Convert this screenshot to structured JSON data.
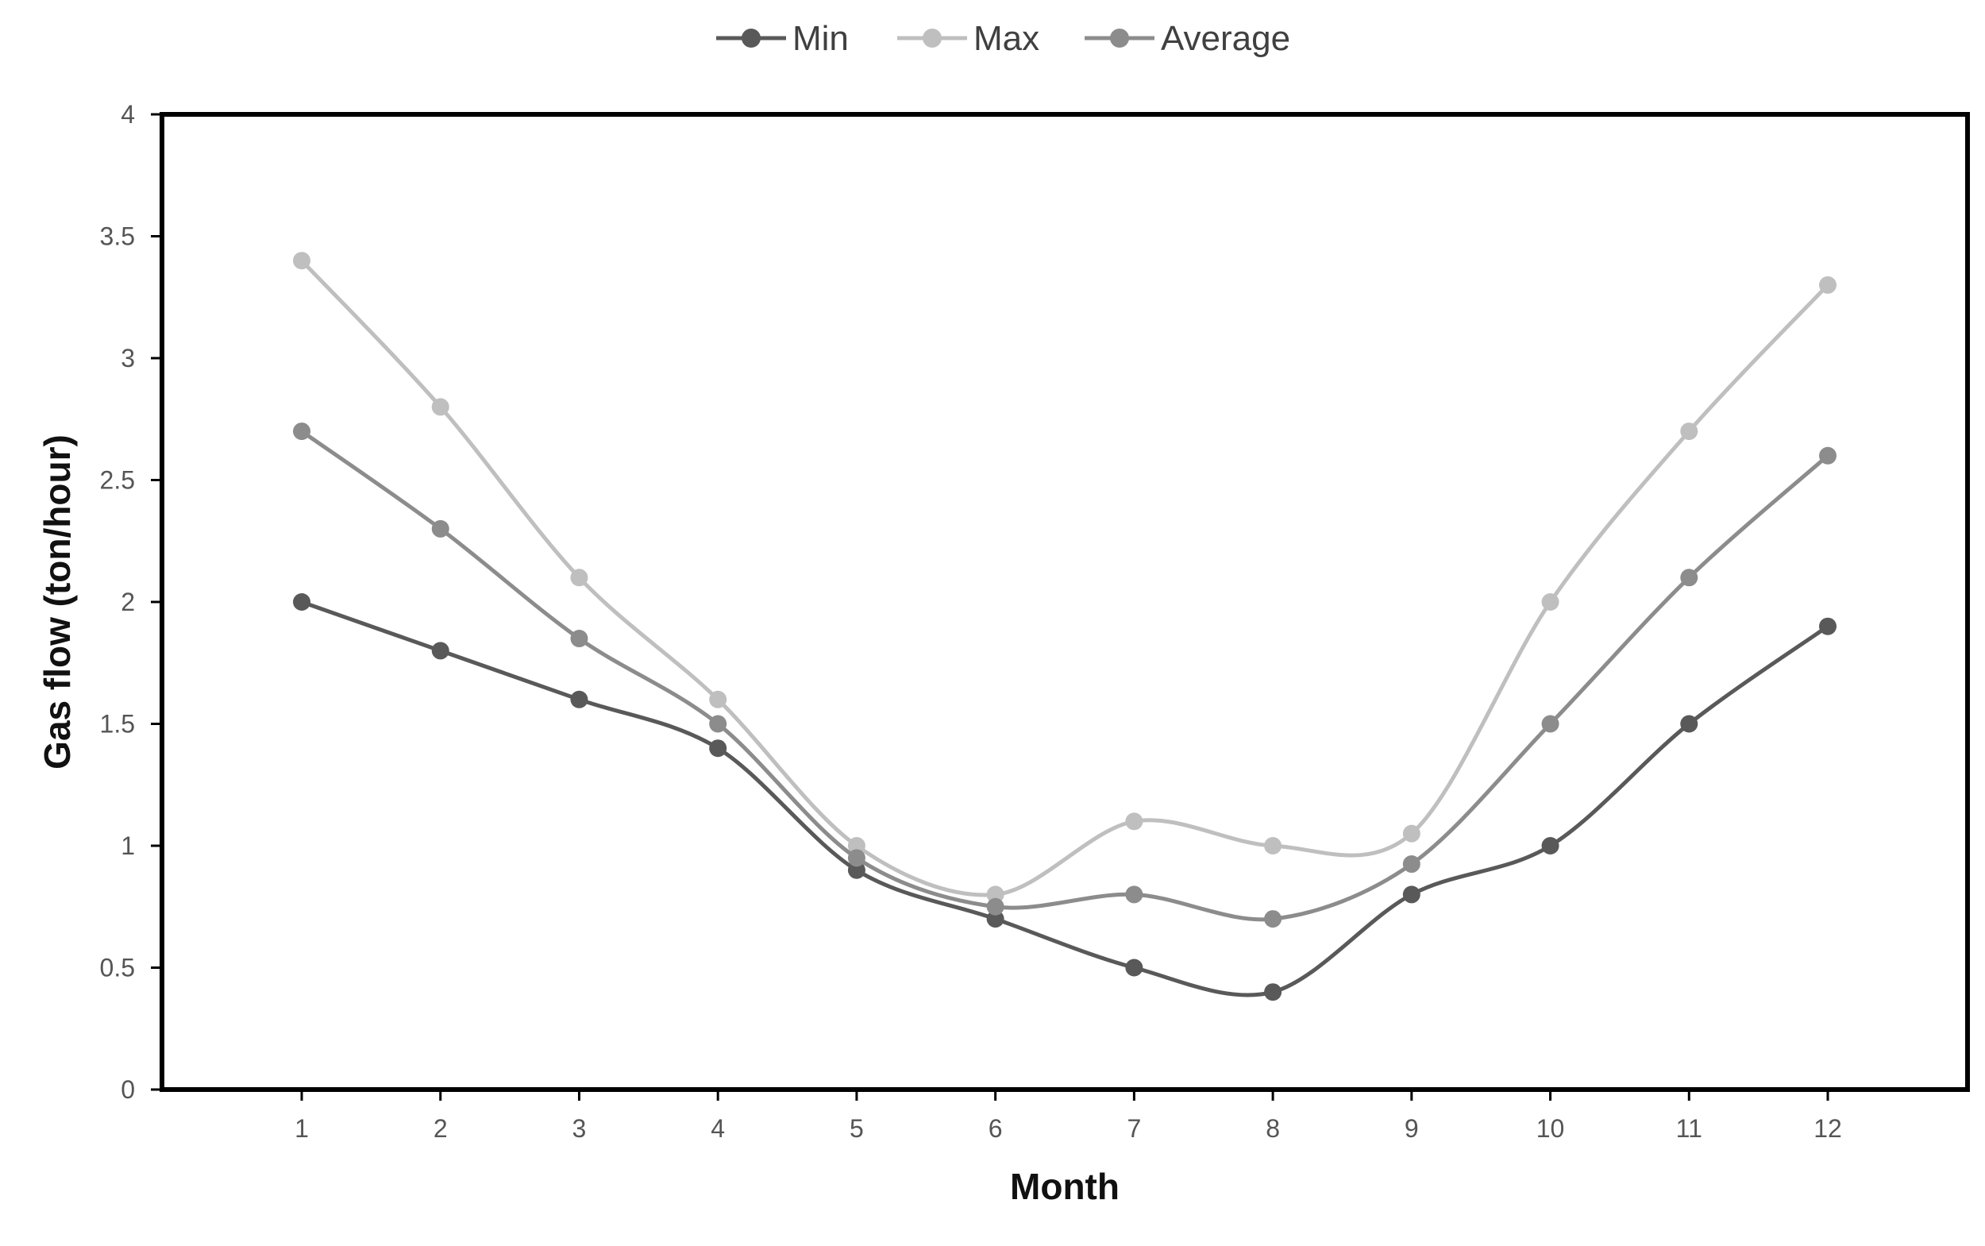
{
  "chart_data": {
    "type": "line",
    "title": "",
    "xlabel": "Month",
    "ylabel": "Gas flow (ton/hour)",
    "categories": [
      "1",
      "2",
      "3",
      "4",
      "5",
      "6",
      "7",
      "8",
      "9",
      "10",
      "11",
      "12"
    ],
    "y_ticks": [
      "0",
      "0.5",
      "1",
      "1.5",
      "2",
      "2.5",
      "3",
      "3.5",
      "4"
    ],
    "ylim": [
      0,
      4
    ],
    "grid": false,
    "legend_position": "top-center",
    "series": [
      {
        "name": "Min",
        "color": "#595959",
        "values": [
          2.0,
          1.8,
          1.6,
          1.4,
          0.9,
          0.7,
          0.5,
          0.4,
          0.8,
          1.0,
          1.5,
          1.9
        ]
      },
      {
        "name": "Max",
        "color": "#bfbfbf",
        "values": [
          3.4,
          2.8,
          2.1,
          1.6,
          1.0,
          0.8,
          1.1,
          1.0,
          1.05,
          2.0,
          2.7,
          3.3
        ]
      },
      {
        "name": "Average",
        "color": "#8c8c8c",
        "values": [
          2.7,
          2.3,
          1.85,
          1.5,
          0.95,
          0.75,
          0.8,
          0.7,
          0.925,
          1.5,
          2.1,
          2.6
        ]
      }
    ]
  }
}
